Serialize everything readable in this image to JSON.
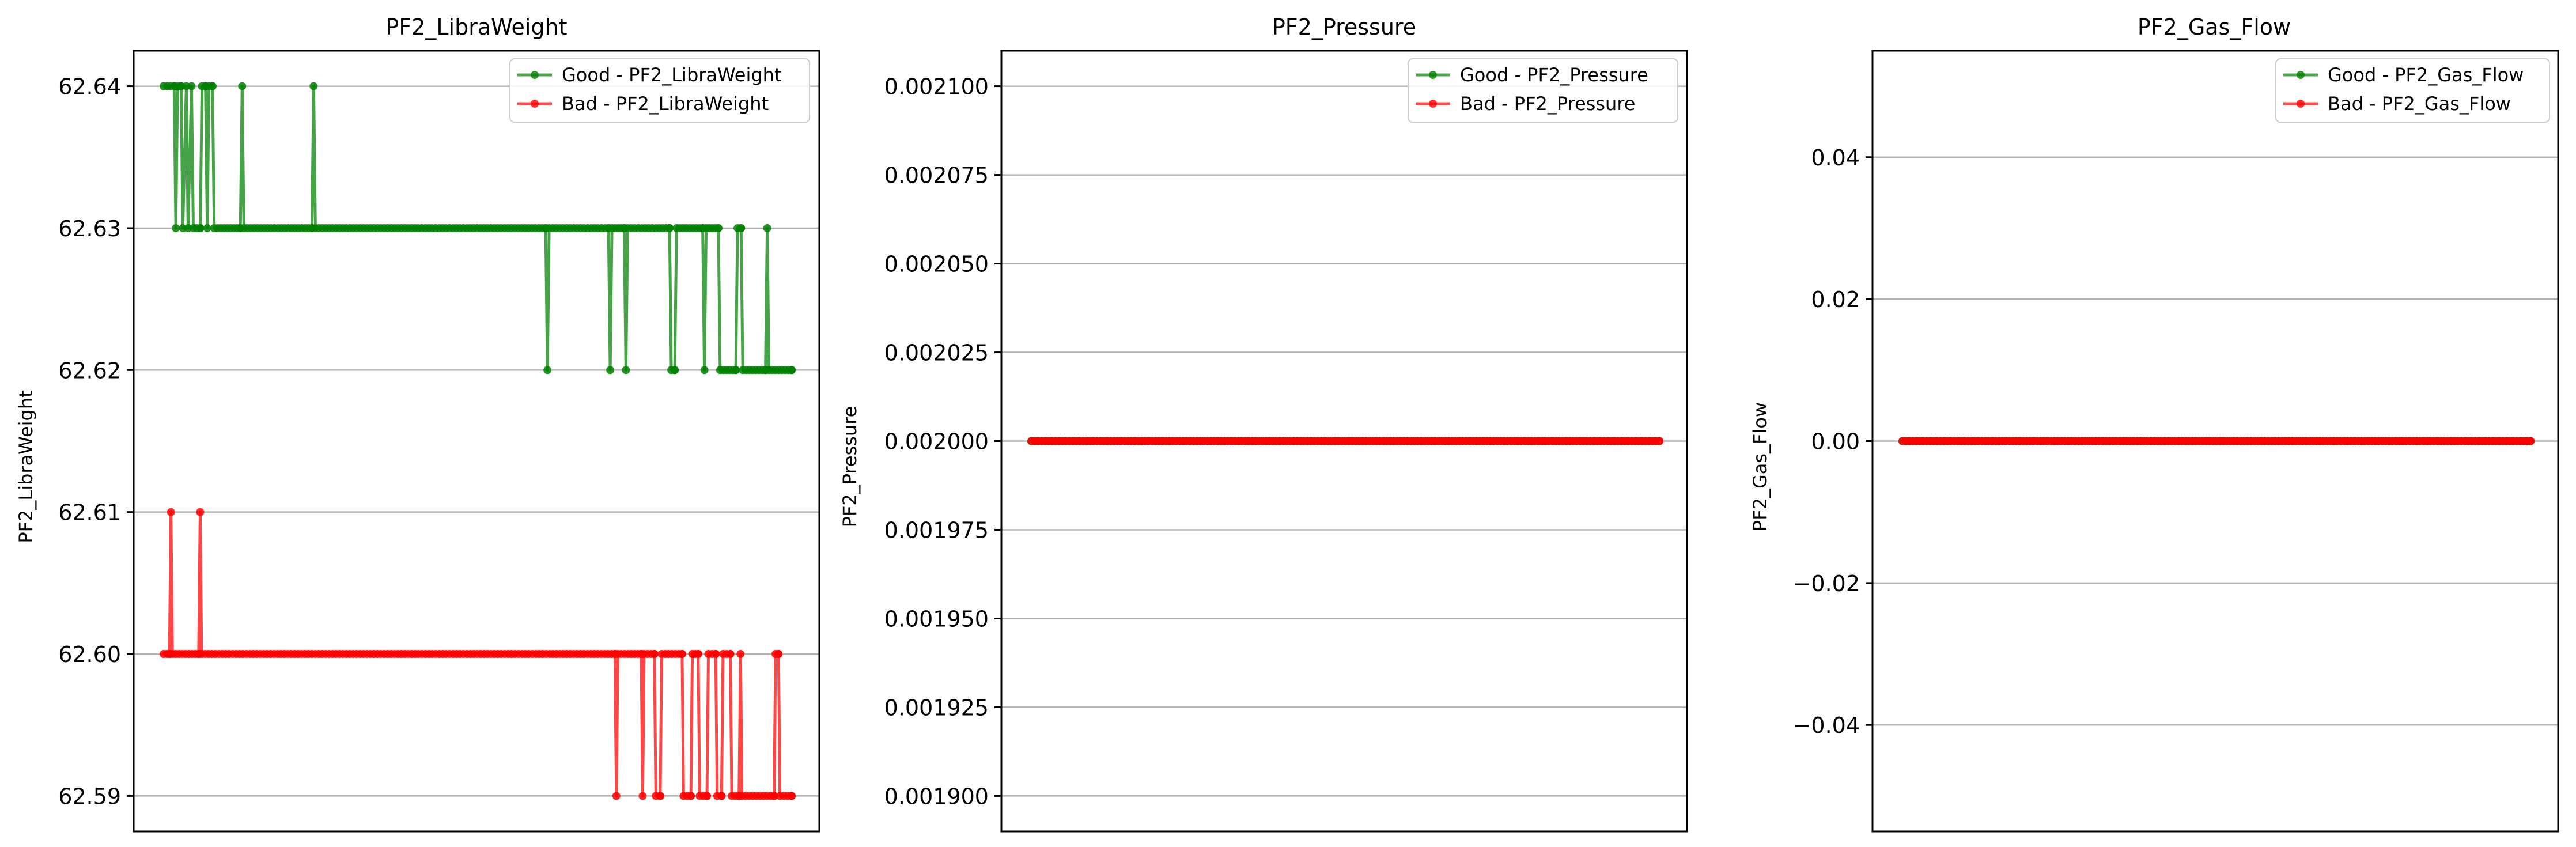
{
  "colors": {
    "good": "#008000",
    "bad": "#ff0000",
    "grid": "#b0b0b0",
    "axis": "#000000",
    "legend_border": "#cccccc"
  },
  "chart_data": [
    {
      "type": "line",
      "title": "PF2_LibraWeight",
      "ylabel": "PF2_LibraWeight",
      "xlabel": "",
      "ylim": [
        62.5875,
        62.6425
      ],
      "yticks": [
        "62.59",
        "62.60",
        "62.61",
        "62.62",
        "62.63",
        "62.64"
      ],
      "ytick_values": [
        62.59,
        62.6,
        62.61,
        62.62,
        62.63,
        62.64
      ],
      "grid": "y",
      "legend_position": "top-right",
      "series": [
        {
          "name": "Good - PF2_LibraWeight",
          "color": "#008000",
          "x_range": [
            0,
            480
          ],
          "segments": [
            [
              0,
              62.64
            ],
            [
              6,
              62.64
            ],
            [
              7,
              62.63
            ],
            [
              8,
              62.64
            ],
            [
              10,
              62.64
            ],
            [
              11,
              62.63
            ],
            [
              13,
              62.64
            ],
            [
              14,
              62.63
            ],
            [
              16,
              62.64
            ],
            [
              17,
              62.63
            ],
            [
              21,
              62.63
            ],
            [
              22,
              62.64
            ],
            [
              24,
              62.64
            ],
            [
              25,
              62.63
            ],
            [
              26,
              62.64
            ],
            [
              28,
              62.64
            ],
            [
              29,
              62.63
            ],
            [
              44,
              62.63
            ],
            [
              45,
              62.64
            ],
            [
              46,
              62.63
            ],
            [
              85,
              62.63
            ],
            [
              86,
              62.64
            ],
            [
              87,
              62.63
            ],
            [
              219,
              62.63
            ],
            [
              220,
              62.62
            ],
            [
              221,
              62.63
            ],
            [
              255,
              62.63
            ],
            [
              256,
              62.62
            ],
            [
              257,
              62.63
            ],
            [
              264,
              62.63
            ],
            [
              265,
              62.62
            ],
            [
              266,
              62.63
            ],
            [
              290,
              62.63
            ],
            [
              291,
              62.62
            ],
            [
              293,
              62.62
            ],
            [
              294,
              62.63
            ],
            [
              309,
              62.63
            ],
            [
              310,
              62.62
            ],
            [
              311,
              62.63
            ],
            [
              318,
              62.63
            ],
            [
              319,
              62.62
            ],
            [
              328,
              62.62
            ],
            [
              329,
              62.63
            ],
            [
              331,
              62.63
            ],
            [
              332,
              62.62
            ],
            [
              345,
              62.62
            ],
            [
              346,
              62.63
            ],
            [
              347,
              62.62
            ],
            [
              360,
              62.62
            ]
          ]
        },
        {
          "name": "Bad - PF2_LibraWeight",
          "color": "#ff0000",
          "x_range": [
            0,
            480
          ],
          "segments": [
            [
              0,
              62.6
            ],
            [
              4,
              62.6
            ],
            [
              5,
              62.61
            ],
            [
              6,
              62.6
            ],
            [
              24,
              62.6
            ],
            [
              25,
              62.61
            ],
            [
              26,
              62.6
            ],
            [
              309,
              62.6
            ],
            [
              310,
              62.59
            ],
            [
              311,
              62.6
            ],
            [
              327,
              62.6
            ],
            [
              328,
              62.59
            ],
            [
              329,
              62.6
            ],
            [
              336,
              62.6
            ],
            [
              337,
              62.59
            ],
            [
              340,
              62.59
            ],
            [
              341,
              62.6
            ],
            [
              355,
              62.6
            ],
            [
              356,
              62.59
            ],
            [
              361,
              62.59
            ],
            [
              362,
              62.6
            ],
            [
              366,
              62.6
            ],
            [
              367,
              62.59
            ],
            [
              372,
              62.59
            ],
            [
              373,
              62.6
            ],
            [
              378,
              62.6
            ],
            [
              379,
              62.59
            ],
            [
              382,
              62.59
            ],
            [
              383,
              62.6
            ],
            [
              388,
              62.6
            ],
            [
              389,
              62.59
            ],
            [
              394,
              62.59
            ],
            [
              395,
              62.6
            ],
            [
              396,
              62.59
            ],
            [
              418,
              62.59
            ],
            [
              419,
              62.6
            ],
            [
              421,
              62.6
            ],
            [
              422,
              62.59
            ],
            [
              430,
              62.59
            ]
          ]
        }
      ]
    },
    {
      "type": "line",
      "title": "PF2_Pressure",
      "ylabel": "PF2_Pressure",
      "xlabel": "",
      "ylim": [
        0.00189,
        0.00211
      ],
      "yticks": [
        "0.001900",
        "0.001925",
        "0.001950",
        "0.001975",
        "0.002000",
        "0.002025",
        "0.002050",
        "0.002075",
        "0.002100"
      ],
      "ytick_values": [
        0.0019,
        0.001925,
        0.00195,
        0.001975,
        0.002,
        0.002025,
        0.00205,
        0.002075,
        0.0021
      ],
      "grid": "y",
      "legend_position": "top-right",
      "series": [
        {
          "name": "Good - PF2_Pressure",
          "color": "#008000",
          "x_range": [
            0,
            480
          ],
          "segments": [
            [
              0,
              0.002
            ],
            [
              480,
              0.002
            ]
          ]
        },
        {
          "name": "Bad - PF2_Pressure",
          "color": "#ff0000",
          "x_range": [
            0,
            480
          ],
          "segments": [
            [
              0,
              0.002
            ],
            [
              480,
              0.002
            ]
          ]
        }
      ]
    },
    {
      "type": "line",
      "title": "PF2_Gas_Flow",
      "ylabel": "PF2_Gas_Flow",
      "xlabel": "",
      "ylim": [
        -0.055,
        0.055
      ],
      "yticks": [
        "−0.04",
        "−0.02",
        "0.00",
        "0.02",
        "0.04"
      ],
      "ytick_values": [
        -0.04,
        -0.02,
        0.0,
        0.02,
        0.04
      ],
      "grid": "y",
      "legend_position": "top-right",
      "series": [
        {
          "name": "Good - PF2_Gas_Flow",
          "color": "#008000",
          "x_range": [
            0,
            480
          ],
          "segments": [
            [
              0,
              0.0
            ],
            [
              480,
              0.0
            ]
          ]
        },
        {
          "name": "Bad - PF2_Gas_Flow",
          "color": "#ff0000",
          "x_range": [
            0,
            480
          ],
          "segments": [
            [
              0,
              0.0
            ],
            [
              480,
              0.0
            ]
          ]
        }
      ]
    }
  ]
}
